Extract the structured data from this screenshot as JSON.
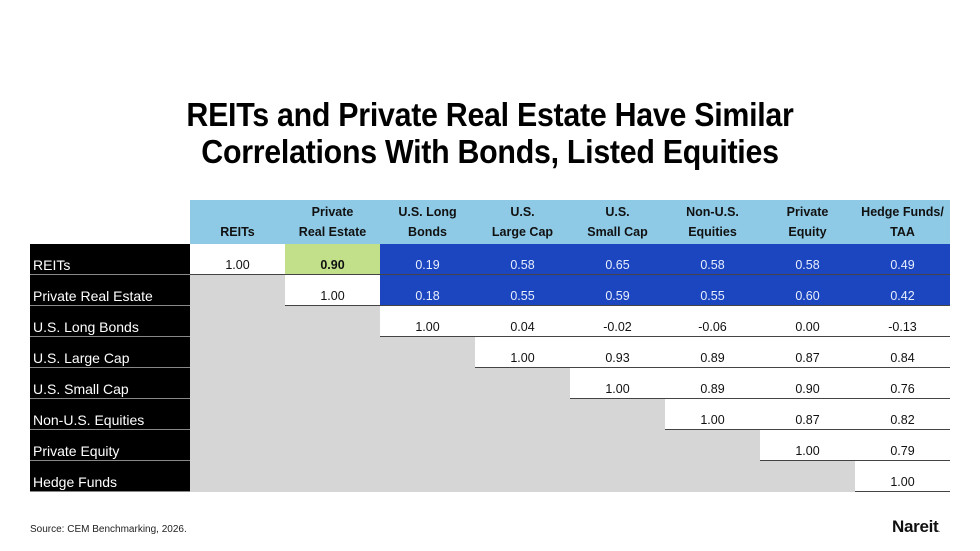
{
  "title": {
    "line1": "REITs and Private Real Estate Have Similar",
    "line2": "Correlations With Bonds, Listed Equities"
  },
  "columns": [
    {
      "line1": "",
      "line2": "REITs"
    },
    {
      "line1": "Private",
      "line2": "Real Estate"
    },
    {
      "line1": "U.S. Long",
      "line2": "Bonds"
    },
    {
      "line1": "U.S.",
      "line2": "Large Cap"
    },
    {
      "line1": "U.S.",
      "line2": "Small Cap"
    },
    {
      "line1": "Non-U.S.",
      "line2": "Equities"
    },
    {
      "line1": "Private",
      "line2": "Equity"
    },
    {
      "line1": "Hedge Funds/",
      "line2": "TAA"
    }
  ],
  "rows": [
    {
      "label": "REITs",
      "values": [
        "1.00",
        "0.90",
        "0.19",
        "0.58",
        "0.65",
        "0.58",
        "0.58",
        "0.49"
      ]
    },
    {
      "label": "Private Real Estate",
      "values": [
        "",
        "1.00",
        "0.18",
        "0.55",
        "0.59",
        "0.55",
        "0.60",
        "0.42"
      ]
    },
    {
      "label": "U.S. Long Bonds",
      "values": [
        "",
        "",
        "1.00",
        "0.04",
        "-0.02",
        "-0.06",
        "0.00",
        "-0.13"
      ]
    },
    {
      "label": "U.S. Large Cap",
      "values": [
        "",
        "",
        "",
        "1.00",
        "0.93",
        "0.89",
        "0.87",
        "0.84"
      ]
    },
    {
      "label": "U.S. Small Cap",
      "values": [
        "",
        "",
        "",
        "",
        "1.00",
        "0.89",
        "0.90",
        "0.76"
      ]
    },
    {
      "label": "Non-U.S. Equities",
      "values": [
        "",
        "",
        "",
        "",
        "",
        "1.00",
        "0.87",
        "0.82"
      ]
    },
    {
      "label": "Private Equity",
      "values": [
        "",
        "",
        "",
        "",
        "",
        "",
        "1.00",
        "0.79"
      ]
    },
    {
      "label": "Hedge Funds",
      "values": [
        "",
        "",
        "",
        "",
        "",
        "",
        "",
        "1.00"
      ]
    }
  ],
  "colors": {
    "header_bg": "#8ecae6",
    "highlight_blue": "#1b46c0",
    "highlight_green": "#c2e08a",
    "empty_grey": "#d6d6d6",
    "row_label_bg": "#000000"
  },
  "source": "Source: CEM Benchmarking, 2026.",
  "logo": {
    "text": "Nareit",
    "dot": "."
  },
  "chart_data": {
    "type": "table",
    "title": "REITs and Private Real Estate Have Similar Correlations With Bonds, Listed Equities",
    "categories": [
      "REITs",
      "Private Real Estate",
      "U.S. Long Bonds",
      "U.S. Large Cap",
      "U.S. Small Cap",
      "Non-U.S. Equities",
      "Private Equity",
      "Hedge Funds/TAA"
    ],
    "matrix": [
      [
        1.0,
        0.9,
        0.19,
        0.58,
        0.65,
        0.58,
        0.58,
        0.49
      ],
      [
        null,
        1.0,
        0.18,
        0.55,
        0.59,
        0.55,
        0.6,
        0.42
      ],
      [
        null,
        null,
        1.0,
        0.04,
        -0.02,
        -0.06,
        0.0,
        -0.13
      ],
      [
        null,
        null,
        null,
        1.0,
        0.93,
        0.89,
        0.87,
        0.84
      ],
      [
        null,
        null,
        null,
        null,
        1.0,
        0.89,
        0.9,
        0.76
      ],
      [
        null,
        null,
        null,
        null,
        null,
        1.0,
        0.87,
        0.82
      ],
      [
        null,
        null,
        null,
        null,
        null,
        null,
        1.0,
        0.79
      ],
      [
        null,
        null,
        null,
        null,
        null,
        null,
        null,
        1.0
      ]
    ],
    "annotations": [
      "REITs vs Private Real Estate correlation 0.90 highlighted in green",
      "REITs and Private Real Estate rows vs other assets highlighted in blue"
    ],
    "source": "Source: CEM Benchmarking, 2026."
  }
}
